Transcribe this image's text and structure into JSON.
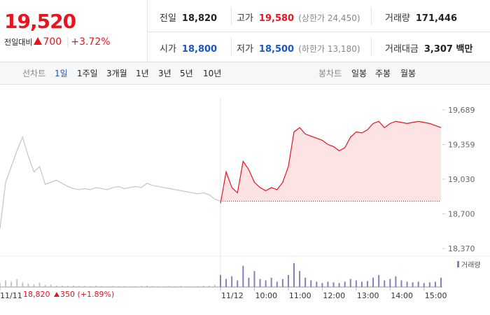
{
  "summary": {
    "price": "19,520",
    "change_label": "전일대비",
    "change": "700",
    "change_pct": "+3.72%"
  },
  "stats": [
    {
      "label": "전일",
      "value": "18,820"
    },
    {
      "label": "고가",
      "value": "19,580",
      "note": "(상한가 24,450)"
    },
    {
      "label": "거래량",
      "value": "171,446"
    },
    {
      "label": "시가",
      "value": "18,800"
    },
    {
      "label": "저가",
      "value": "18,500",
      "note": "(하한가 13,180)"
    },
    {
      "label": "거래대금",
      "value": "3,307 백만"
    }
  ],
  "tabs": {
    "line_label": "선차트",
    "line": [
      "1일",
      "1주일",
      "3개월",
      "1년",
      "3년",
      "5년",
      "10년"
    ],
    "candle_label": "봉차트",
    "candle": [
      "일봉",
      "주봉",
      "월봉"
    ]
  },
  "footer": {
    "price": "18,820",
    "change": "350",
    "change_pct": "(+1.89%)"
  },
  "chart_data": {
    "type": "line",
    "xlim": [
      -390,
      390
    ],
    "ylim": [
      18370,
      19689
    ],
    "yticks": [
      {
        "value": 19689,
        "label": "19,689"
      },
      {
        "value": 19359,
        "label": "19,359"
      },
      {
        "value": 19030,
        "label": "19,030"
      },
      {
        "value": 18700,
        "label": "18,700"
      },
      {
        "value": 18370,
        "label": "18,370"
      }
    ],
    "xticks": [
      {
        "value": -390,
        "label": "11/11"
      },
      {
        "value": 0,
        "label": "11/12"
      },
      {
        "value": 60,
        "label": "10:00"
      },
      {
        "value": 120,
        "label": "11:00"
      },
      {
        "value": 180,
        "label": "12:00"
      },
      {
        "value": 240,
        "label": "13:00"
      },
      {
        "value": 300,
        "label": "14:00"
      },
      {
        "value": 360,
        "label": "15:00"
      }
    ],
    "baseline": 18820,
    "volume_name": "거래량",
    "volume_color": "#8e7cc3",
    "volume_ylim": [
      0,
      20000
    ],
    "series": [
      {
        "color": "#c4c4c4",
        "x": [
          -390,
          -380,
          -370,
          -360,
          -350,
          -340,
          -330,
          -320,
          -310,
          -300,
          -290,
          -280,
          -270,
          -260,
          -250,
          -240,
          -230,
          -220,
          -210,
          -200,
          -190,
          -180,
          -170,
          -160,
          -150,
          -140,
          -130,
          -120,
          -110,
          -100,
          -90,
          -80,
          -70,
          -60,
          -50,
          -40,
          -30,
          -20,
          -10,
          0
        ],
        "values": [
          18560,
          19000,
          19150,
          19300,
          19430,
          19250,
          19100,
          19150,
          18980,
          19000,
          19020,
          18990,
          18960,
          18940,
          18930,
          18940,
          18930,
          18950,
          18940,
          18930,
          18950,
          18960,
          18940,
          18950,
          18960,
          18950,
          18990,
          18970,
          18960,
          18950,
          18940,
          18930,
          18920,
          18910,
          18900,
          18890,
          18900,
          18880,
          18840,
          18820
        ],
        "volume": [
          3000,
          5000,
          4000,
          6000,
          3500,
          2500,
          2000,
          3000,
          1500,
          1800,
          1200,
          1000,
          900,
          1100,
          800,
          900,
          700,
          1000,
          800,
          600,
          900,
          700,
          800,
          600,
          700,
          900,
          1200,
          800,
          700,
          600,
          800,
          700,
          900,
          600,
          700,
          800,
          900,
          1000,
          1500,
          2500
        ]
      },
      {
        "color": "#e8141e",
        "fill": "#fde3e3",
        "x": [
          0,
          10,
          20,
          30,
          40,
          50,
          60,
          70,
          80,
          90,
          100,
          110,
          120,
          130,
          140,
          150,
          160,
          170,
          180,
          190,
          200,
          210,
          220,
          230,
          240,
          250,
          260,
          270,
          280,
          290,
          300,
          310,
          320,
          330,
          340,
          350,
          360,
          370,
          380,
          390
        ],
        "values": [
          18800,
          19100,
          18950,
          18900,
          19200,
          19120,
          19000,
          18950,
          18920,
          18950,
          18930,
          19000,
          19150,
          19480,
          19520,
          19460,
          19440,
          19420,
          19400,
          19360,
          19340,
          19300,
          19330,
          19430,
          19480,
          19470,
          19500,
          19560,
          19580,
          19520,
          19560,
          19580,
          19570,
          19560,
          19570,
          19580,
          19570,
          19560,
          19540,
          19520
        ],
        "volume": [
          9000,
          6000,
          8000,
          5000,
          16000,
          7000,
          12000,
          6000,
          5000,
          7000,
          4000,
          6000,
          9000,
          18000,
          12000,
          7000,
          5000,
          4000,
          3000,
          4000,
          3500,
          3000,
          4000,
          6000,
          5000,
          4000,
          4500,
          7000,
          9000,
          5000,
          6000,
          8000,
          5000,
          4000,
          3500,
          4000,
          3000,
          3500,
          4000,
          7000
        ]
      }
    ]
  }
}
